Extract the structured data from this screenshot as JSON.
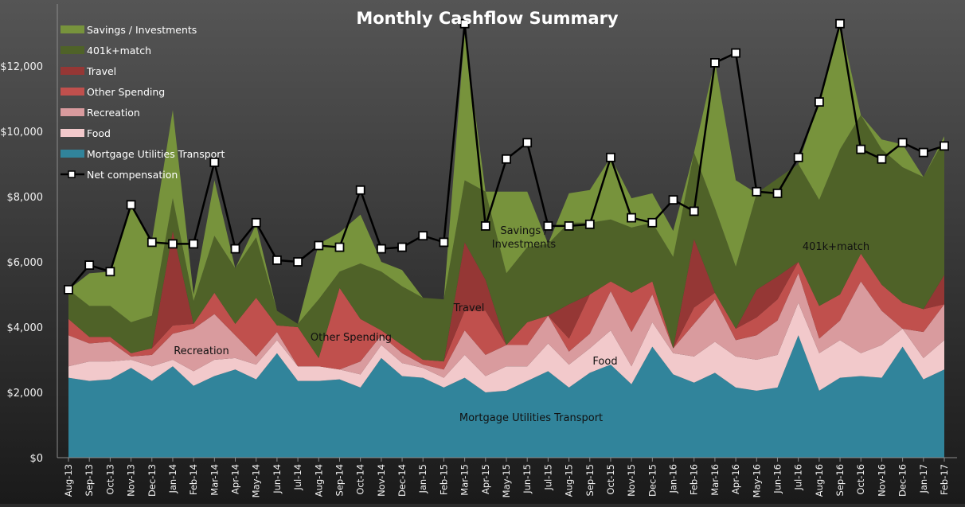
{
  "chart_data": {
    "type": "area",
    "title": "Monthly Cashflow Summary",
    "xlabel": "",
    "ylabel": "",
    "ylim": [
      0,
      13000
    ],
    "y_ticks": [
      0,
      2000,
      4000,
      6000,
      8000,
      10000,
      12000
    ],
    "y_tick_labels": [
      "$0",
      "$2,000",
      "$4,000",
      "$6,000",
      "$8,000",
      "$10,000",
      "$12,000"
    ],
    "grid": false,
    "stacked": true,
    "legend": "top-left",
    "categories": [
      "Aug-13",
      "Sep-13",
      "Oct-13",
      "Nov-13",
      "Dec-13",
      "Jan-14",
      "Feb-14",
      "Mar-14",
      "Apr-14",
      "May-14",
      "Jun-14",
      "Jul-14",
      "Aug-14",
      "Sep-14",
      "Oct-14",
      "Nov-14",
      "Dec-14",
      "Jan-15",
      "Feb-15",
      "Mar-15",
      "Apr-15",
      "May-15",
      "Jun-15",
      "Jul-15",
      "Aug-15",
      "Sep-15",
      "Oct-15",
      "Nov-15",
      "Dec-15",
      "Jan-16",
      "Feb-16",
      "Mar-16",
      "Apr-16",
      "May-16",
      "Jun-16",
      "Jul-16",
      "Aug-16",
      "Sep-16",
      "Oct-16",
      "Nov-16",
      "Dec-16",
      "Jan-17",
      "Feb-17"
    ],
    "series": [
      {
        "name": "Mortgage Utilities Transport",
        "color": "#31849b",
        "values": [
          2450,
          2350,
          2400,
          2750,
          2350,
          2800,
          2200,
          2500,
          2700,
          2400,
          3200,
          2350,
          2350,
          2400,
          2150,
          3050,
          2500,
          2450,
          2150,
          2450,
          2000,
          2050,
          2350,
          2650,
          2150,
          2600,
          2850,
          2250,
          3400,
          2550,
          2300,
          2600,
          2150,
          2050,
          2150,
          3750,
          2050,
          2450,
          2500,
          2450,
          3400,
          2400,
          2700
        ]
      },
      {
        "name": "Food",
        "color": "#f2c9cb",
        "values": [
          350,
          600,
          550,
          250,
          450,
          200,
          450,
          500,
          350,
          450,
          400,
          450,
          450,
          300,
          400,
          400,
          400,
          300,
          300,
          700,
          500,
          750,
          450,
          850,
          700,
          750,
          1050,
          550,
          750,
          650,
          800,
          950,
          950,
          950,
          1000,
          1000,
          1150,
          1150,
          700,
          1000,
          550,
          650,
          900
        ]
      },
      {
        "name": "Recreation",
        "color": "#d99b9e",
        "values": [
          950,
          550,
          600,
          100,
          350,
          800,
          1300,
          1400,
          700,
          250,
          250,
          0,
          0,
          0,
          400,
          300,
          300,
          100,
          250,
          750,
          650,
          650,
          650,
          850,
          400,
          450,
          1200,
          1050,
          850,
          150,
          1000,
          1300,
          500,
          750,
          1050,
          900,
          450,
          600,
          2200,
          1050,
          0,
          800,
          1100
        ]
      },
      {
        "name": "Other Spending",
        "color": "#c0504d",
        "values": [
          500,
          200,
          150,
          100,
          200,
          250,
          150,
          650,
          350,
          1800,
          200,
          1200,
          250,
          2500,
          1300,
          150,
          250,
          150,
          250,
          600,
          1350,
          0,
          700,
          0,
          400,
          1200,
          300,
          1200,
          400,
          0,
          500,
          200,
          350,
          550,
          650,
          350,
          1000,
          800,
          850,
          800,
          800,
          700,
          0
        ]
      },
      {
        "name": "Travel",
        "color": "#953735",
        "values": [
          0,
          0,
          0,
          0,
          0,
          2900,
          0,
          0,
          0,
          0,
          0,
          0,
          0,
          0,
          0,
          0,
          0,
          0,
          0,
          2100,
          950,
          0,
          0,
          0,
          1050,
          0,
          0,
          0,
          0,
          0,
          2100,
          0,
          0,
          850,
          700,
          0,
          0,
          0,
          0,
          0,
          0,
          0,
          900
        ]
      },
      {
        "name": "401k+match",
        "color": "#4f6228",
        "values": [
          900,
          950,
          950,
          950,
          1000,
          1000,
          700,
          1750,
          1700,
          1850,
          450,
          100,
          1800,
          500,
          1700,
          1800,
          1800,
          1900,
          1900,
          1900,
          2700,
          2200,
          2300,
          2200,
          2500,
          2200,
          1900,
          2000,
          1800,
          2800,
          2650,
          2600,
          1900,
          2950,
          3000,
          3000,
          3250,
          4450,
          4250,
          4150,
          4150,
          4050,
          4150
        ]
      },
      {
        "name": "Savings / Investments",
        "color": "#77933c",
        "values": [
          0,
          1000,
          1050,
          3600,
          2300,
          2700,
          200,
          1700,
          0,
          400,
          0,
          0,
          1700,
          1200,
          1500,
          300,
          500,
          0,
          0,
          4500,
          0,
          2500,
          1700,
          0,
          900,
          1000,
          1900,
          900,
          900,
          800,
          0,
          4500,
          2650,
          0,
          0,
          0,
          3000,
          3900,
          0,
          300,
          700,
          0,
          100
        ]
      }
    ],
    "line_series": {
      "name": "Net compensation",
      "values": [
        5150,
        5900,
        5700,
        7750,
        6600,
        6550,
        6550,
        9050,
        6400,
        7200,
        6050,
        6000,
        6500,
        6450,
        8200,
        6400,
        6450,
        6800,
        6600,
        13300,
        7100,
        9150,
        9650,
        7100,
        7100,
        7150,
        9200,
        7350,
        7200,
        7900,
        7550,
        12100,
        12400,
        8150,
        8100,
        9200,
        10900,
        13300,
        9450,
        9150,
        9650,
        9350,
        9550
      ]
    },
    "annotations": [
      {
        "text": "Recreation",
        "series": "Recreation"
      },
      {
        "text": "Other Spending",
        "series": "Other Spending"
      },
      {
        "text": "Travel",
        "series": "Travel"
      },
      {
        "text": "Savings / Investments",
        "series": "Savings / Investments"
      },
      {
        "text": "Food",
        "series": "Food"
      },
      {
        "text": "401k+match",
        "series": "401k+match"
      },
      {
        "text": "Mortgage Utilities Transport",
        "series": "Mortgage Utilities Transport"
      }
    ],
    "legend_order": [
      "Savings / Investments",
      "401k+match",
      "Travel",
      "Other Spending",
      "Recreation",
      "Food",
      "Mortgage Utilities Transport",
      "Net compensation"
    ]
  }
}
